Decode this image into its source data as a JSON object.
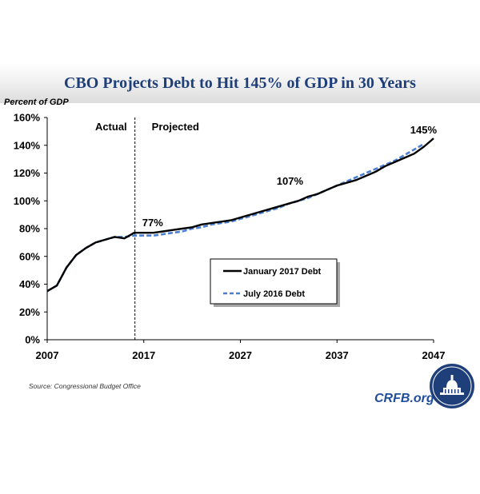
{
  "chart_data": {
    "type": "line",
    "title": "CBO Projects Debt to Hit 145% of GDP in 30 Years",
    "ylabel": "Percent of GDP",
    "xlabel": "",
    "xlim": [
      2007,
      2047
    ],
    "ylim": [
      0,
      160
    ],
    "xticks": [
      2007,
      2017,
      2027,
      2037,
      2047
    ],
    "yticks": [
      {
        "value": 0,
        "label": "0%"
      },
      {
        "value": 20,
        "label": "20%"
      },
      {
        "value": 40,
        "label": "40%"
      },
      {
        "value": 60,
        "label": "60%"
      },
      {
        "value": 80,
        "label": "80%"
      },
      {
        "value": 100,
        "label": "100%"
      },
      {
        "value": 120,
        "label": "120%"
      },
      {
        "value": 140,
        "label": "140%"
      },
      {
        "value": 160,
        "label": "160%"
      }
    ],
    "grid": false,
    "divider": {
      "x": 2016,
      "left_label": "Actual",
      "right_label": "Projected"
    },
    "legend_position": "middle",
    "series": [
      {
        "name": "January 2017 Debt",
        "color": "#000000",
        "style": "solid",
        "x": [
          2007,
          2008,
          2009,
          2010,
          2011,
          2012,
          2013,
          2014,
          2015,
          2016,
          2017,
          2018,
          2019,
          2020,
          2021,
          2022,
          2023,
          2024,
          2025,
          2026,
          2027,
          2028,
          2029,
          2030,
          2031,
          2032,
          2033,
          2034,
          2035,
          2036,
          2037,
          2038,
          2039,
          2040,
          2041,
          2042,
          2043,
          2044,
          2045,
          2046,
          2047
        ],
        "y": [
          35,
          39,
          52,
          61,
          66,
          70,
          72,
          74,
          73,
          77,
          77,
          77,
          78,
          79,
          80,
          81,
          83,
          84,
          85,
          86,
          88,
          90,
          92,
          94,
          96,
          98,
          100,
          103,
          105,
          108,
          111,
          113,
          115,
          118,
          121,
          125,
          128,
          131,
          134,
          139,
          145
        ]
      },
      {
        "name": "July 2016 Debt",
        "color": "#4a7fd4",
        "style": "dashed",
        "x": [
          2007,
          2008,
          2009,
          2010,
          2011,
          2012,
          2013,
          2014,
          2015,
          2016,
          2017,
          2018,
          2019,
          2020,
          2021,
          2022,
          2023,
          2024,
          2025,
          2026,
          2027,
          2028,
          2029,
          2030,
          2031,
          2032,
          2033,
          2034,
          2035,
          2036,
          2037,
          2038,
          2039,
          2040,
          2041,
          2042,
          2043,
          2044,
          2045,
          2046
        ],
        "y": [
          35,
          39,
          52,
          61,
          66,
          70,
          72,
          74,
          74,
          75,
          75,
          75,
          76,
          77,
          78,
          80,
          81,
          83,
          84,
          85,
          87,
          89,
          91,
          93,
          95,
          98,
          100,
          102,
          105,
          108,
          111,
          114,
          117,
          120,
          123,
          126,
          129,
          133,
          137,
          141
        ]
      }
    ],
    "annotations": [
      {
        "x": 2017,
        "y": 77,
        "label": "77%"
      },
      {
        "x": 2034,
        "y": 107,
        "label": "107%"
      },
      {
        "x": 2047,
        "y": 145,
        "label": "145%"
      }
    ]
  },
  "source": "Source: Congressional Budget Office",
  "brand": "CRFB.org"
}
